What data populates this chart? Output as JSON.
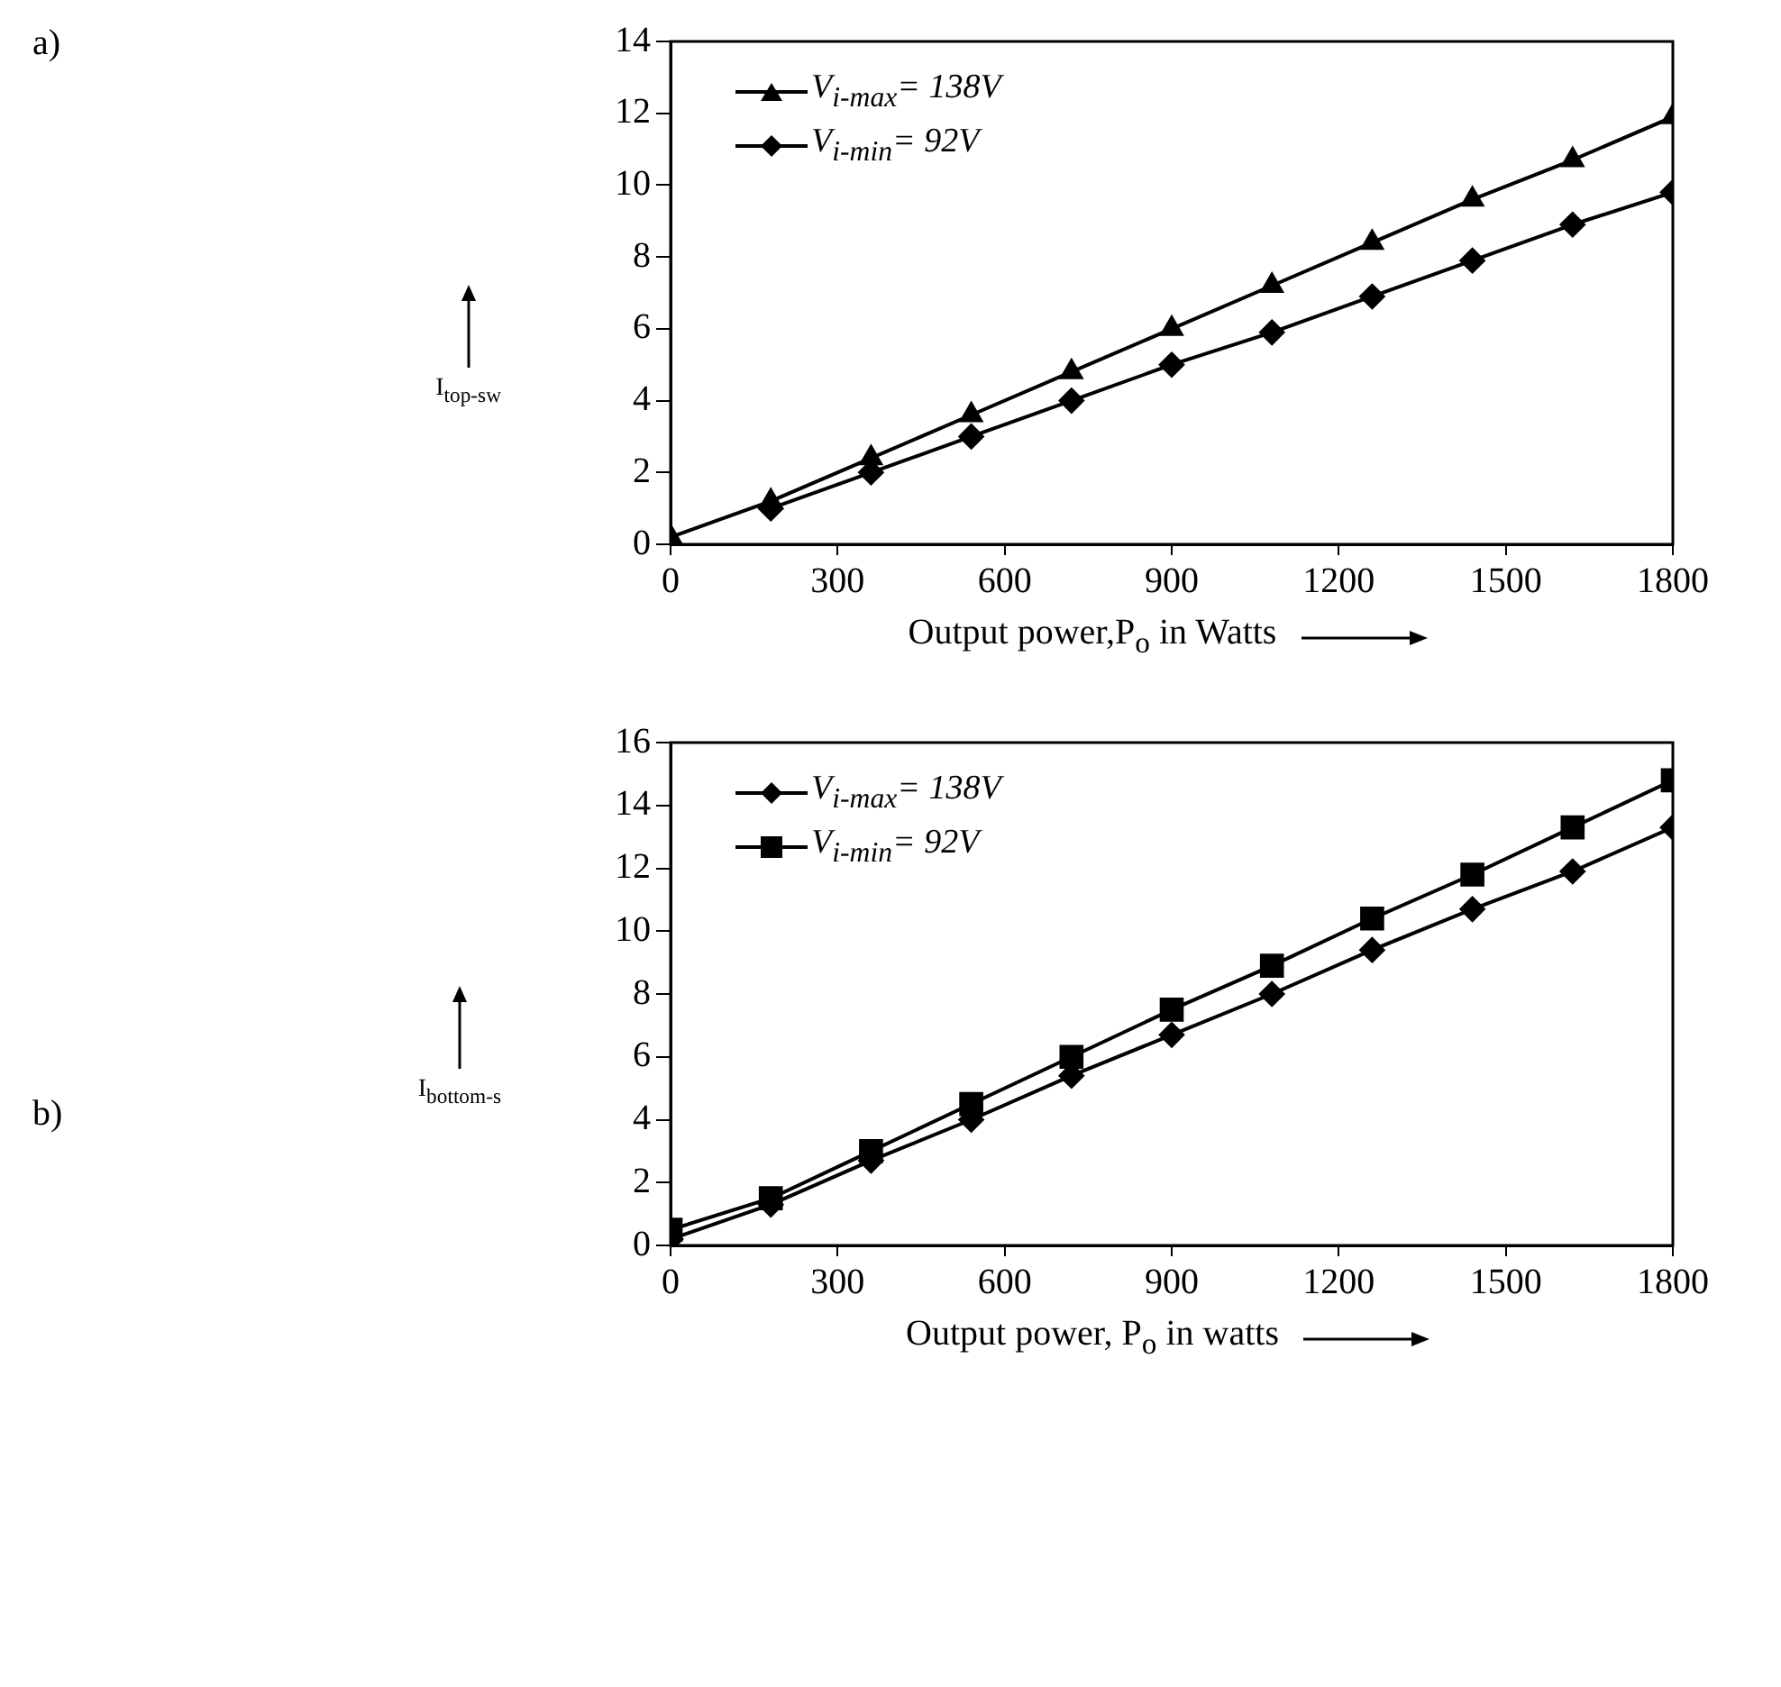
{
  "chart_data": [
    {
      "type": "line",
      "annotations": [
        "a)"
      ],
      "xlabel": "Output power,P$_{o}$ in Watts",
      "ylabel": "I$_{top-sw}$",
      "x": [
        0,
        180,
        360,
        540,
        720,
        900,
        1080,
        1260,
        1440,
        1620,
        1800
      ],
      "xlim": [
        0,
        1800
      ],
      "xticks": [
        0,
        300,
        600,
        900,
        1200,
        1500,
        1800
      ],
      "ylim": [
        0,
        14
      ],
      "yticks": [
        0,
        2,
        4,
        6,
        8,
        10,
        12,
        14
      ],
      "legend": "top left",
      "series": [
        {
          "name": "V$_{i-max}$= 138V",
          "color": "#000000",
          "marker": "triangle",
          "values": [
            0.2,
            1.2,
            2.4,
            3.6,
            4.8,
            6.0,
            7.2,
            8.4,
            9.6,
            10.7,
            11.9
          ]
        },
        {
          "name": "V$_{i-min}$= 92V",
          "color": "#000000",
          "marker": "diamond",
          "values": [
            null,
            1.0,
            2.0,
            3.0,
            4.0,
            5.0,
            5.9,
            6.9,
            7.9,
            8.9,
            9.8
          ]
        }
      ]
    },
    {
      "type": "line",
      "annotations": [
        "b)"
      ],
      "xlabel": "Output power, P$_{o}$ in watts",
      "ylabel": "I$_{bottom-s}$",
      "x": [
        0,
        180,
        360,
        540,
        720,
        900,
        1080,
        1260,
        1440,
        1620,
        1800
      ],
      "xlim": [
        0,
        1800
      ],
      "xticks": [
        0,
        300,
        600,
        900,
        1200,
        1500,
        1800
      ],
      "ylim": [
        0,
        16
      ],
      "yticks": [
        0,
        2,
        4,
        6,
        8,
        10,
        12,
        14,
        16
      ],
      "legend": "top left",
      "series": [
        {
          "name": "V$_{i-max}$= 138V",
          "color": "#000000",
          "marker": "diamond",
          "values": [
            0.2,
            1.3,
            2.7,
            4.0,
            5.4,
            6.7,
            8.0,
            9.4,
            10.7,
            11.9,
            13.3
          ]
        },
        {
          "name": "V$_{i-min}$= 92V",
          "color": "#000000",
          "marker": "square",
          "values": [
            0.5,
            1.5,
            3.0,
            4.5,
            6.0,
            7.5,
            8.9,
            10.4,
            11.8,
            13.3,
            14.8
          ]
        }
      ]
    }
  ]
}
